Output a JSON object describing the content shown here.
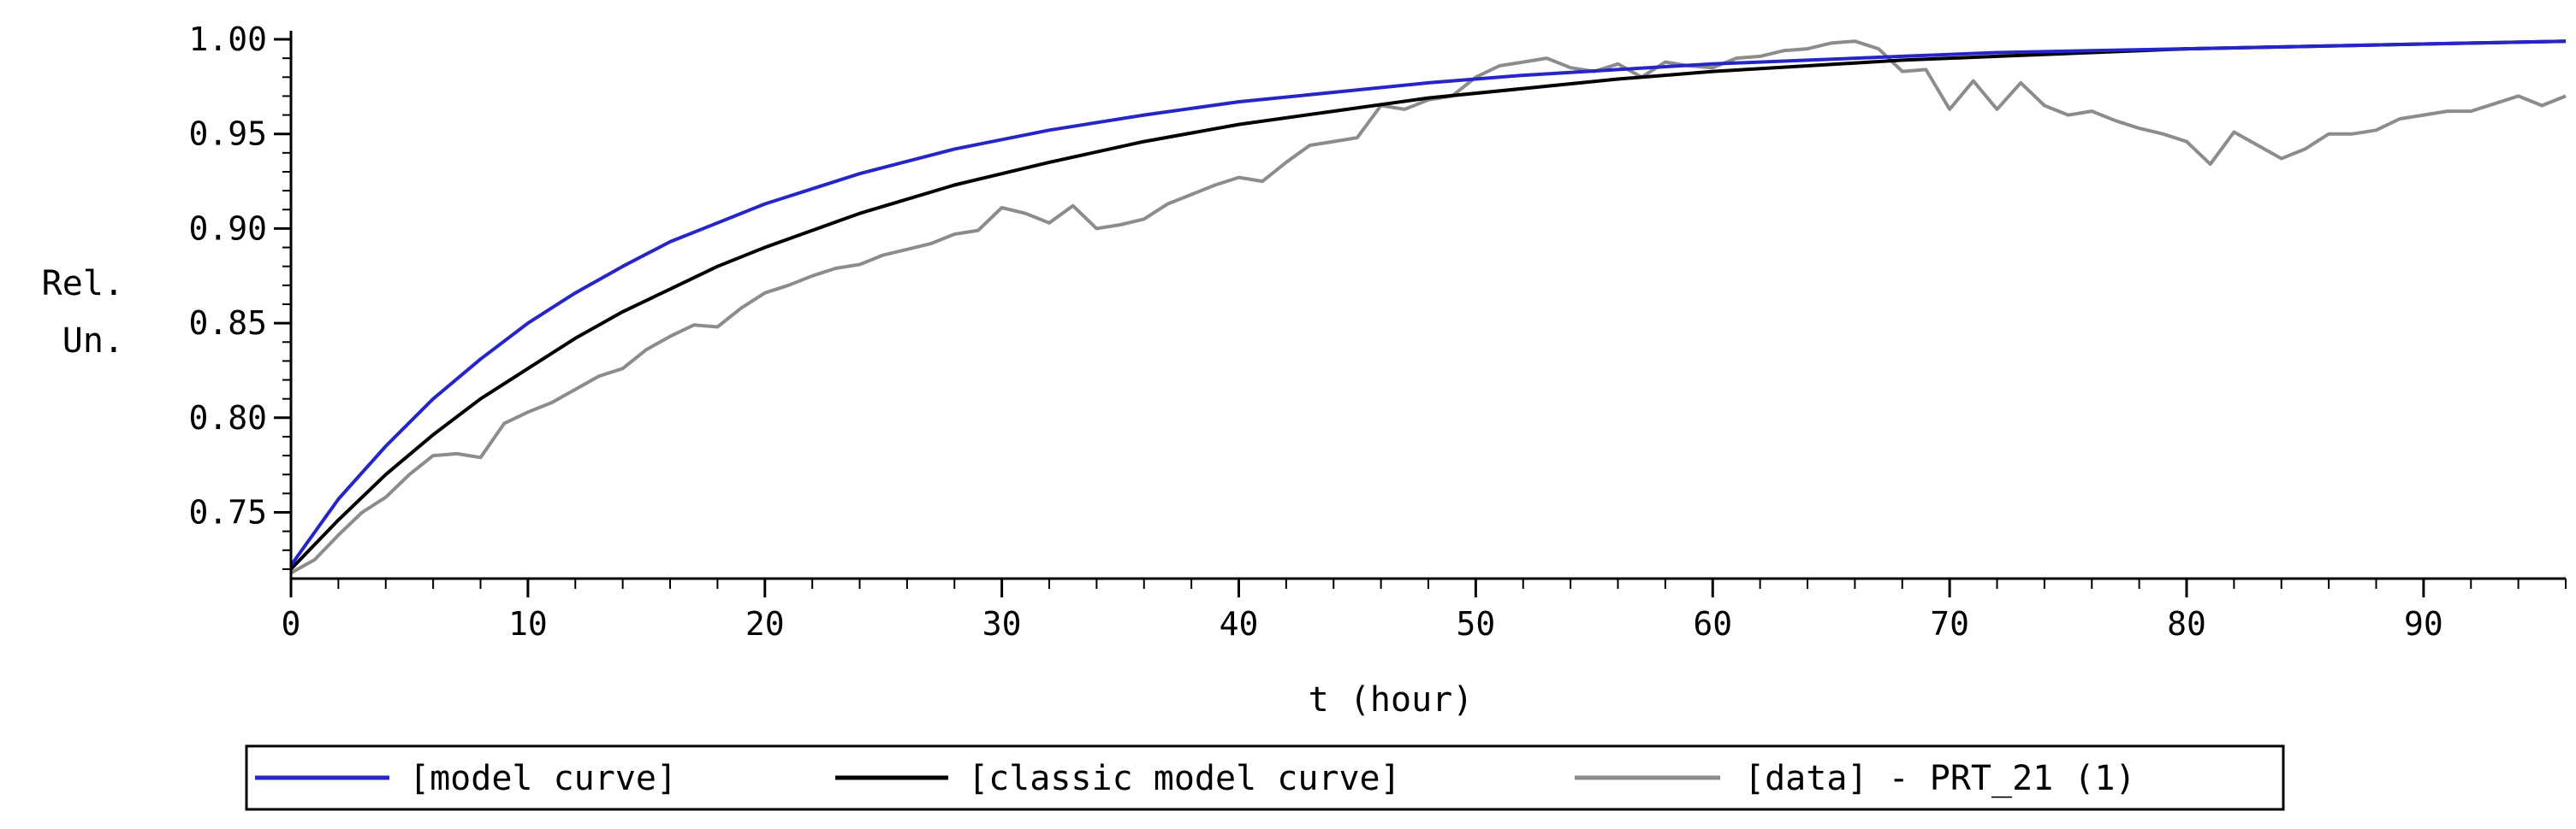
{
  "chart_data": {
    "type": "line",
    "xlabel": "t (hour)",
    "ylabel_line1": "Rel.",
    "ylabel_line2": "Un.",
    "xlim": [
      0,
      96
    ],
    "ylim": [
      0.715,
      1.0
    ],
    "x_ticks": [
      0,
      10,
      20,
      30,
      40,
      50,
      60,
      70,
      80,
      90
    ],
    "y_ticks": [
      0.75,
      0.8,
      0.85,
      0.9,
      0.95,
      1.0
    ],
    "x_tick_labels": [
      "0",
      "10",
      "20",
      "30",
      "40",
      "50",
      "60",
      "70",
      "80",
      "90"
    ],
    "y_tick_labels": [
      "0.75",
      "0.80",
      "0.85",
      "0.90",
      "0.95",
      "1.00"
    ],
    "grid": false,
    "legend_position": "bottom-center",
    "series": [
      {
        "name": "[model curve]",
        "color": "#2525c8",
        "x": [
          0,
          2,
          4,
          6,
          8,
          10,
          12,
          14,
          16,
          18,
          20,
          24,
          28,
          32,
          36,
          40,
          44,
          48,
          52,
          56,
          60,
          64,
          68,
          72,
          76,
          80,
          84,
          88,
          92,
          96
        ],
        "y": [
          0.722,
          0.757,
          0.785,
          0.81,
          0.831,
          0.85,
          0.866,
          0.88,
          0.893,
          0.903,
          0.913,
          0.929,
          0.942,
          0.952,
          0.96,
          0.967,
          0.972,
          0.977,
          0.981,
          0.984,
          0.987,
          0.989,
          0.991,
          0.993,
          0.994,
          0.995,
          0.996,
          0.997,
          0.998,
          0.999
        ]
      },
      {
        "name": "[classic model curve]",
        "color": "#000000",
        "x": [
          0,
          2,
          4,
          6,
          8,
          10,
          12,
          14,
          16,
          18,
          20,
          24,
          28,
          32,
          36,
          40,
          44,
          48,
          52,
          56,
          60,
          64,
          68,
          72,
          76,
          80,
          84,
          88,
          92,
          96
        ],
        "y": [
          0.72,
          0.746,
          0.77,
          0.791,
          0.81,
          0.826,
          0.842,
          0.856,
          0.868,
          0.88,
          0.89,
          0.908,
          0.923,
          0.935,
          0.946,
          0.955,
          0.962,
          0.969,
          0.974,
          0.979,
          0.983,
          0.986,
          0.989,
          0.991,
          0.993,
          0.995,
          0.996,
          0.997,
          0.998,
          0.999
        ]
      },
      {
        "name": "[data] - PRT_21 (1)",
        "color": "#8c8c8c",
        "x": [
          0,
          1,
          2,
          3,
          4,
          5,
          6,
          7,
          8,
          9,
          10,
          11,
          12,
          13,
          14,
          15,
          16,
          17,
          18,
          19,
          20,
          21,
          22,
          23,
          24,
          25,
          26,
          27,
          28,
          29,
          30,
          31,
          32,
          33,
          34,
          35,
          36,
          37,
          38,
          39,
          40,
          41,
          42,
          43,
          44,
          45,
          46,
          47,
          48,
          49,
          50,
          51,
          52,
          53,
          54,
          55,
          56,
          57,
          58,
          59,
          60,
          61,
          62,
          63,
          64,
          65,
          66,
          67,
          68,
          69,
          70,
          71,
          72,
          73,
          74,
          75,
          76,
          77,
          78,
          79,
          80,
          81,
          82,
          83,
          84,
          85,
          86,
          87,
          88,
          89,
          90,
          91,
          92,
          93,
          94,
          95,
          96
        ],
        "y": [
          0.718,
          0.725,
          0.738,
          0.75,
          0.758,
          0.77,
          0.78,
          0.781,
          0.779,
          0.797,
          0.803,
          0.808,
          0.815,
          0.822,
          0.826,
          0.836,
          0.843,
          0.849,
          0.848,
          0.858,
          0.866,
          0.87,
          0.875,
          0.879,
          0.881,
          0.886,
          0.889,
          0.892,
          0.897,
          0.899,
          0.911,
          0.908,
          0.903,
          0.912,
          0.9,
          0.902,
          0.905,
          0.913,
          0.918,
          0.923,
          0.927,
          0.925,
          0.935,
          0.944,
          0.946,
          0.948,
          0.965,
          0.963,
          0.968,
          0.97,
          0.98,
          0.986,
          0.988,
          0.99,
          0.985,
          0.983,
          0.987,
          0.98,
          0.988,
          0.986,
          0.985,
          0.99,
          0.991,
          0.994,
          0.995,
          0.998,
          0.999,
          0.995,
          0.983,
          0.984,
          0.963,
          0.978,
          0.963,
          0.977,
          0.965,
          0.96,
          0.962,
          0.957,
          0.953,
          0.95,
          0.946,
          0.934,
          0.951,
          0.944,
          0.937,
          0.942,
          0.95,
          0.95,
          0.952,
          0.958,
          0.96,
          0.962,
          0.962,
          0.966,
          0.97,
          0.965,
          0.97
        ]
      }
    ]
  }
}
